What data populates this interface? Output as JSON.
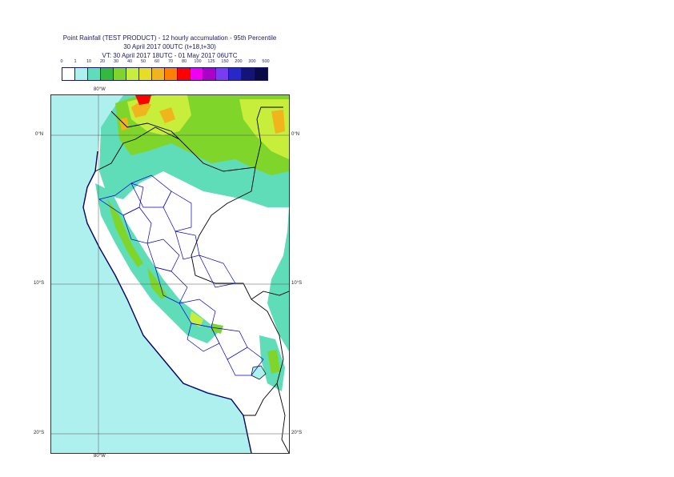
{
  "title": {
    "line1": "Point Rainfall (TEST PRODUCT) - 12 hourly accumulation - 95th Percentile",
    "line2": "30 April 2017 00UTC (t+18,t+30)",
    "line3": "VT: 30 April 2017 18UTC - 01 May 2017 06UTC"
  },
  "legend": {
    "thresholds": [
      "0",
      "1",
      "10",
      "20",
      "30",
      "40",
      "50",
      "60",
      "70",
      "80",
      "100",
      "125",
      "150",
      "200",
      "300",
      "500"
    ],
    "colors": [
      "#ffffff",
      "#aef0ee",
      "#5fdcb8",
      "#33b93d",
      "#7fd52a",
      "#c8ee3c",
      "#e6de24",
      "#f0b41c",
      "#ff7f00",
      "#ff0000",
      "#f000f0",
      "#aa00c8",
      "#7a3cf0",
      "#2828c8",
      "#141478",
      "#0a0a46"
    ]
  },
  "map": {
    "coords": {
      "lon_top": "80°W",
      "lon_bottom": "80°W",
      "lat_0_left": "0°N",
      "lat_0_right": "0°N",
      "lat_10_left": "10°S",
      "lat_10_right": "10°S",
      "lat_20_left": "20°S",
      "lat_20_right": "20°S"
    },
    "colors": {
      "ocean": "#aef0ee",
      "dry": "#ffffff",
      "light": "#5fdcb8",
      "moderate": "#33b93d",
      "heavy": "#c8ee3c",
      "extreme": "#ff0000",
      "border_country": "#000000",
      "border_region": "#0000cc",
      "coastline": "#000066"
    }
  }
}
